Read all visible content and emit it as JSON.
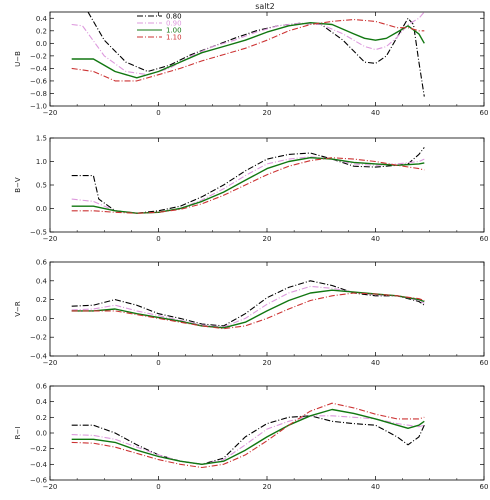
{
  "figure": {
    "title": "salt2"
  },
  "legend": [
    {
      "label": "0.80",
      "color": "#000000",
      "dash": "dashdot"
    },
    {
      "label": "0.90",
      "color": "#dd99dd",
      "dash": "dashdot"
    },
    {
      "label": "1.00",
      "color": "#117711",
      "dash": "solid"
    },
    {
      "label": "1.10",
      "color": "#cc3333",
      "dash": "dashdot"
    }
  ],
  "chart_data": [
    {
      "type": "line",
      "title": "salt2",
      "ylabel": "U−B",
      "xlim": [
        -20,
        60
      ],
      "ylim": [
        -1.0,
        0.5
      ],
      "xticks": [
        -20,
        0,
        20,
        40,
        60
      ],
      "yticks": [
        -1.0,
        -0.8,
        -0.6,
        -0.4,
        -0.2,
        0.0,
        0.2,
        0.4
      ],
      "ytick_labels": [
        "−1.0",
        "−0.8",
        "−0.6",
        "−0.4",
        "−0.2",
        "0.0",
        "0.2",
        "0.4"
      ],
      "series": [
        {
          "name": "0.80",
          "x": [
            -13,
            -10,
            -6,
            -2,
            2,
            6,
            10,
            14,
            18,
            22,
            26,
            30,
            34,
            38,
            40,
            42,
            44,
            46,
            47,
            48,
            49
          ],
          "y": [
            0.5,
            0.05,
            -0.3,
            -0.45,
            -0.35,
            -0.18,
            -0.05,
            0.08,
            0.2,
            0.28,
            0.32,
            0.3,
            0.05,
            -0.3,
            -0.32,
            -0.2,
            0.1,
            0.4,
            0.3,
            -0.3,
            -0.85
          ]
        },
        {
          "name": "0.90",
          "x": [
            -16,
            -14,
            -10,
            -6,
            -2,
            2,
            6,
            10,
            14,
            18,
            22,
            26,
            30,
            34,
            38,
            40,
            42,
            44,
            46,
            48,
            49
          ],
          "y": [
            0.3,
            0.28,
            -0.2,
            -0.45,
            -0.5,
            -0.4,
            -0.2,
            -0.05,
            0.05,
            0.18,
            0.28,
            0.32,
            0.3,
            0.15,
            -0.05,
            -0.1,
            -0.05,
            0.1,
            0.3,
            0.4,
            0.5
          ]
        },
        {
          "name": "1.00",
          "x": [
            -16,
            -12,
            -8,
            -4,
            0,
            4,
            8,
            12,
            16,
            20,
            24,
            28,
            32,
            36,
            38,
            40,
            42,
            44,
            46,
            48,
            49
          ],
          "y": [
            -0.25,
            -0.25,
            -0.45,
            -0.55,
            -0.45,
            -0.3,
            -0.15,
            -0.05,
            0.05,
            0.18,
            0.28,
            0.33,
            0.3,
            0.15,
            0.08,
            0.05,
            0.08,
            0.18,
            0.28,
            0.15,
            0.0
          ]
        },
        {
          "name": "1.10",
          "x": [
            -16,
            -12,
            -8,
            -4,
            0,
            4,
            8,
            12,
            16,
            20,
            24,
            28,
            32,
            36,
            40,
            44,
            46,
            48,
            49
          ],
          "y": [
            -0.4,
            -0.45,
            -0.6,
            -0.6,
            -0.5,
            -0.4,
            -0.28,
            -0.18,
            -0.08,
            0.05,
            0.2,
            0.3,
            0.35,
            0.38,
            0.35,
            0.25,
            0.25,
            0.2,
            0.2
          ]
        }
      ]
    },
    {
      "type": "line",
      "ylabel": "B−V",
      "xlim": [
        -20,
        60
      ],
      "ylim": [
        -0.5,
        1.5
      ],
      "xticks": [
        -20,
        0,
        20,
        40,
        60
      ],
      "yticks": [
        -0.5,
        0.0,
        0.5,
        1.0,
        1.5
      ],
      "ytick_labels": [
        "−0.5",
        "0.0",
        "0.5",
        "1.0",
        "1.5"
      ],
      "series": [
        {
          "name": "0.80",
          "x": [
            -16,
            -12,
            -11,
            -8,
            -4,
            0,
            4,
            8,
            12,
            16,
            20,
            24,
            28,
            32,
            36,
            40,
            44,
            46,
            48,
            49
          ],
          "y": [
            0.7,
            0.7,
            0.2,
            -0.05,
            -0.1,
            -0.05,
            0.05,
            0.25,
            0.5,
            0.8,
            1.05,
            1.15,
            1.18,
            1.05,
            0.9,
            0.88,
            0.92,
            0.95,
            1.15,
            1.3
          ]
        },
        {
          "name": "0.90",
          "x": [
            -16,
            -12,
            -8,
            -4,
            0,
            4,
            8,
            12,
            16,
            20,
            24,
            28,
            32,
            36,
            40,
            44,
            48,
            49
          ],
          "y": [
            0.2,
            0.15,
            -0.05,
            -0.1,
            -0.08,
            0.0,
            0.18,
            0.42,
            0.7,
            0.95,
            1.05,
            1.1,
            1.05,
            0.95,
            0.92,
            0.95,
            1.0,
            1.05
          ]
        },
        {
          "name": "1.00",
          "x": [
            -16,
            -12,
            -8,
            -4,
            0,
            4,
            8,
            12,
            16,
            20,
            24,
            28,
            32,
            36,
            40,
            44,
            48,
            49
          ],
          "y": [
            0.05,
            0.05,
            -0.05,
            -0.1,
            -0.08,
            0.0,
            0.15,
            0.35,
            0.6,
            0.85,
            1.0,
            1.08,
            1.05,
            0.98,
            0.95,
            0.92,
            0.95,
            0.97
          ]
        },
        {
          "name": "1.10",
          "x": [
            -16,
            -12,
            -8,
            -4,
            0,
            4,
            8,
            12,
            16,
            20,
            24,
            28,
            32,
            36,
            40,
            44,
            48,
            49
          ],
          "y": [
            -0.05,
            -0.05,
            -0.08,
            -0.1,
            -0.08,
            -0.02,
            0.1,
            0.28,
            0.5,
            0.72,
            0.9,
            1.02,
            1.08,
            1.05,
            1.0,
            0.92,
            0.85,
            0.82
          ]
        }
      ]
    },
    {
      "type": "line",
      "ylabel": "V−R",
      "xlim": [
        -20,
        60
      ],
      "ylim": [
        -0.4,
        0.6
      ],
      "xticks": [
        -20,
        0,
        20,
        40,
        60
      ],
      "yticks": [
        -0.4,
        -0.2,
        0.0,
        0.2,
        0.4,
        0.6
      ],
      "ytick_labels": [
        "−0.4",
        "−0.2",
        "0.0",
        "0.2",
        "0.4",
        "0.6"
      ],
      "series": [
        {
          "name": "0.80",
          "x": [
            -16,
            -12,
            -8,
            -4,
            0,
            4,
            8,
            12,
            16,
            20,
            24,
            28,
            32,
            36,
            40,
            44,
            48,
            49
          ],
          "y": [
            0.13,
            0.14,
            0.2,
            0.14,
            0.05,
            0.0,
            -0.06,
            -0.08,
            0.05,
            0.22,
            0.33,
            0.4,
            0.35,
            0.27,
            0.24,
            0.24,
            0.18,
            0.14
          ]
        },
        {
          "name": "0.90",
          "x": [
            -16,
            -12,
            -8,
            -4,
            0,
            4,
            8,
            12,
            16,
            20,
            24,
            28,
            32,
            36,
            40,
            44,
            48,
            49
          ],
          "y": [
            0.09,
            0.1,
            0.14,
            0.08,
            0.03,
            -0.02,
            -0.07,
            -0.09,
            0.0,
            0.15,
            0.27,
            0.34,
            0.32,
            0.28,
            0.25,
            0.24,
            0.19,
            0.16
          ]
        },
        {
          "name": "1.00",
          "x": [
            -16,
            -12,
            -8,
            -4,
            0,
            4,
            8,
            12,
            16,
            20,
            24,
            28,
            32,
            36,
            40,
            44,
            48,
            49
          ],
          "y": [
            0.08,
            0.08,
            0.1,
            0.05,
            0.01,
            -0.03,
            -0.08,
            -0.1,
            -0.04,
            0.08,
            0.19,
            0.27,
            0.3,
            0.28,
            0.26,
            0.24,
            0.2,
            0.18
          ]
        },
        {
          "name": "1.10",
          "x": [
            -16,
            -12,
            -8,
            -4,
            0,
            4,
            8,
            12,
            16,
            20,
            24,
            28,
            32,
            36,
            40,
            44,
            48,
            49
          ],
          "y": [
            0.08,
            0.08,
            0.08,
            0.04,
            0.0,
            -0.04,
            -0.08,
            -0.11,
            -0.08,
            0.0,
            0.1,
            0.19,
            0.24,
            0.27,
            0.26,
            0.24,
            0.21,
            0.19
          ]
        }
      ]
    },
    {
      "type": "line",
      "ylabel": "R−I",
      "xlim": [
        -20,
        60
      ],
      "ylim": [
        -0.6,
        0.6
      ],
      "xticks": [
        -20,
        0,
        20,
        40,
        60
      ],
      "yticks": [
        -0.6,
        -0.4,
        -0.2,
        0.0,
        0.2,
        0.4,
        0.6
      ],
      "ytick_labels": [
        "−0.6",
        "−0.4",
        "−0.2",
        "0.0",
        "0.2",
        "0.4",
        "0.6"
      ],
      "series": [
        {
          "name": "0.80",
          "x": [
            -16,
            -12,
            -8,
            -4,
            0,
            4,
            8,
            12,
            16,
            20,
            24,
            28,
            32,
            36,
            40,
            44,
            46,
            48,
            49
          ],
          "y": [
            0.1,
            0.1,
            0.0,
            -0.15,
            -0.28,
            -0.36,
            -0.4,
            -0.32,
            -0.05,
            0.12,
            0.2,
            0.22,
            0.15,
            0.12,
            0.1,
            -0.05,
            -0.15,
            -0.05,
            0.1
          ]
        },
        {
          "name": "0.90",
          "x": [
            -16,
            -12,
            -8,
            -4,
            0,
            4,
            8,
            12,
            16,
            20,
            24,
            28,
            32,
            36,
            40,
            44,
            48,
            49
          ],
          "y": [
            -0.02,
            -0.03,
            -0.08,
            -0.18,
            -0.28,
            -0.36,
            -0.4,
            -0.34,
            -0.15,
            0.05,
            0.15,
            0.22,
            0.22,
            0.2,
            0.18,
            0.12,
            0.08,
            0.1
          ]
        },
        {
          "name": "1.00",
          "x": [
            -16,
            -12,
            -8,
            -4,
            0,
            4,
            8,
            12,
            16,
            20,
            24,
            28,
            32,
            36,
            40,
            44,
            46,
            48,
            49
          ],
          "y": [
            -0.08,
            -0.08,
            -0.12,
            -0.22,
            -0.3,
            -0.36,
            -0.4,
            -0.36,
            -0.22,
            -0.05,
            0.1,
            0.22,
            0.3,
            0.25,
            0.18,
            0.1,
            0.06,
            0.1,
            0.15
          ]
        },
        {
          "name": "1.10",
          "x": [
            -16,
            -12,
            -8,
            -4,
            0,
            4,
            8,
            12,
            16,
            20,
            24,
            28,
            32,
            36,
            40,
            44,
            48,
            49
          ],
          "y": [
            -0.12,
            -0.13,
            -0.18,
            -0.26,
            -0.34,
            -0.4,
            -0.44,
            -0.4,
            -0.28,
            -0.1,
            0.1,
            0.28,
            0.38,
            0.32,
            0.24,
            0.18,
            0.18,
            0.2
          ]
        }
      ]
    }
  ]
}
